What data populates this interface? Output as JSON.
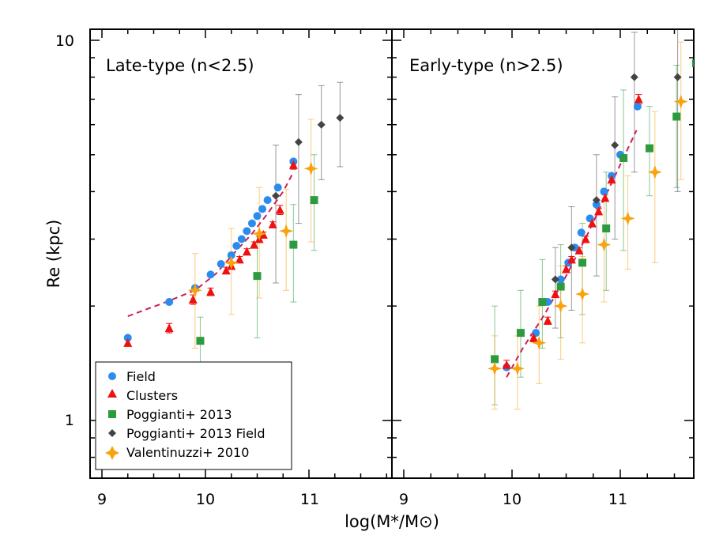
{
  "chart_data": [
    {
      "type": "scatter",
      "title": "Late-type (n<2.5)",
      "xlabel": "log(M*/M⊙)",
      "ylabel": "Re (kpc)",
      "xlim": [
        8.9,
        11.8
      ],
      "ylim": [
        0.7,
        10
      ],
      "yscale": "log",
      "x_ticks": [
        "9",
        "10",
        "11"
      ],
      "y_ticks": [
        "1",
        "10"
      ],
      "series": [
        {
          "name": "Field",
          "color": "#2b8cf0",
          "marker": "circle",
          "x": [
            9.25,
            9.65,
            9.9,
            10.05,
            10.15,
            10.25,
            10.3,
            10.35,
            10.4,
            10.45,
            10.5,
            10.55,
            10.6,
            10.7,
            10.85
          ],
          "y": [
            1.65,
            2.05,
            2.23,
            2.42,
            2.58,
            2.72,
            2.88,
            3.0,
            3.15,
            3.3,
            3.45,
            3.6,
            3.8,
            4.1,
            4.8
          ]
        },
        {
          "name": "Clusters",
          "color": "#ee1111",
          "marker": "triangle",
          "x": [
            9.25,
            9.65,
            9.88,
            10.05,
            10.2,
            10.25,
            10.33,
            10.4,
            10.47,
            10.52,
            10.56,
            10.65,
            10.72,
            10.85
          ],
          "y": [
            1.6,
            1.75,
            2.08,
            2.18,
            2.48,
            2.55,
            2.65,
            2.78,
            2.9,
            3.0,
            3.08,
            3.28,
            3.58,
            4.7
          ],
          "err": [
            [
              0.03,
              0.03
            ],
            [
              0.05,
              0.05
            ],
            [
              0.06,
              0.06
            ],
            [
              0.05,
              0.05
            ],
            [
              0.05,
              0.05
            ],
            [
              0.05,
              0.05
            ],
            [
              0.05,
              0.05
            ],
            [
              0.05,
              0.05
            ],
            [
              0.05,
              0.05
            ],
            [
              0.05,
              0.05
            ],
            [
              0.05,
              0.05
            ],
            [
              0.05,
              0.05
            ],
            [
              0.1,
              0.1
            ],
            [
              0.12,
              0.12
            ]
          ]
        },
        {
          "name": "Poggianti+ 2013",
          "color": "#2e9a3e",
          "marker": "square",
          "x": [
            9.95,
            10.5,
            10.85,
            11.05
          ],
          "y": [
            1.62,
            2.4,
            2.9,
            3.8
          ],
          "err": [
            [
              0.3,
              0.25
            ],
            [
              0.75,
              0.7
            ],
            [
              0.85,
              0.8
            ],
            [
              1.0,
              1.2
            ]
          ]
        },
        {
          "name": "Poggianti+ 2013 Field",
          "color": "#444444",
          "marker": "diamond",
          "x": [
            10.68,
            10.9,
            11.12,
            11.3
          ],
          "y": [
            3.9,
            5.4,
            6.0,
            6.25
          ],
          "err": [
            [
              1.6,
              1.4
            ],
            [
              2.1,
              1.8
            ],
            [
              1.7,
              1.6
            ],
            [
              1.6,
              1.5
            ]
          ]
        },
        {
          "name": "Valentinuzzi+ 2010",
          "color": "#f8a30e",
          "marker": "star",
          "x": [
            9.9,
            10.25,
            10.52,
            10.78,
            11.02
          ],
          "y": [
            2.2,
            2.6,
            3.1,
            3.15,
            4.6
          ],
          "err": [
            [
              0.65,
              0.55
            ],
            [
              0.7,
              0.6
            ],
            [
              1.0,
              1.0
            ],
            [
              0.95,
              0.9
            ],
            [
              1.65,
              1.6
            ]
          ]
        }
      ],
      "fit_line": {
        "x": [
          9.25,
          9.6,
          9.9,
          10.1,
          10.3,
          10.45,
          10.6,
          10.75,
          10.85
        ],
        "y": [
          1.88,
          2.04,
          2.2,
          2.43,
          2.8,
          3.1,
          3.5,
          4.0,
          4.5
        ],
        "color": "#cc1f57",
        "style": "dashed"
      },
      "legend": [
        "Field",
        "Clusters",
        "Poggianti+ 2013",
        "Poggianti+ 2013 Field",
        "Valentinuzzi+ 2010"
      ],
      "legend_placement": "bottom-left"
    },
    {
      "type": "scatter",
      "title": "Early-type (n>2.5)",
      "xlabel": "log(M*/M⊙)",
      "ylabel": "Re (kpc)",
      "xlim": [
        8.9,
        11.8
      ],
      "ylim": [
        0.7,
        10
      ],
      "yscale": "log",
      "x_ticks": [
        "9",
        "10",
        "11"
      ],
      "y_ticks": [
        "1",
        "10"
      ],
      "series": [
        {
          "name": "Field",
          "color": "#2b8cf0",
          "marker": "circle",
          "x": [
            9.95,
            10.22,
            10.33,
            10.45,
            10.52,
            10.58,
            10.64,
            10.72,
            10.78,
            10.85,
            10.92,
            11.0,
            11.16
          ],
          "y": [
            1.38,
            1.7,
            2.05,
            2.35,
            2.6,
            2.85,
            3.12,
            3.4,
            3.7,
            4.0,
            4.4,
            5.0,
            6.7
          ]
        },
        {
          "name": "Clusters",
          "color": "#ee1111",
          "marker": "triangle",
          "x": [
            9.95,
            10.2,
            10.33,
            10.4,
            10.5,
            10.55,
            10.62,
            10.68,
            10.74,
            10.8,
            10.86,
            10.92,
            11.17
          ],
          "y": [
            1.4,
            1.65,
            1.83,
            2.15,
            2.5,
            2.65,
            2.8,
            3.0,
            3.3,
            3.55,
            3.85,
            4.3,
            7.0
          ],
          "err": [
            [
              0.04,
              0.04
            ],
            [
              0.04,
              0.04
            ],
            [
              0.04,
              0.04
            ],
            [
              0.04,
              0.04
            ],
            [
              0.05,
              0.05
            ],
            [
              0.05,
              0.05
            ],
            [
              0.05,
              0.05
            ],
            [
              0.05,
              0.05
            ],
            [
              0.06,
              0.06
            ],
            [
              0.06,
              0.06
            ],
            [
              0.07,
              0.07
            ],
            [
              0.08,
              0.08
            ],
            [
              0.2,
              0.2
            ]
          ]
        },
        {
          "name": "Poggianti+ 2013",
          "color": "#2e9a3e",
          "marker": "square",
          "x": [
            9.84,
            10.08,
            10.28,
            10.45,
            10.65,
            10.87,
            11.03,
            11.27,
            11.52,
            11.7
          ],
          "y": [
            1.45,
            1.7,
            2.05,
            2.25,
            2.6,
            3.2,
            4.9,
            5.2,
            6.3,
            8.7
          ],
          "err": [
            [
              0.35,
              0.55
            ],
            [
              0.4,
              0.5
            ],
            [
              0.5,
              0.6
            ],
            [
              0.6,
              0.65
            ],
            [
              0.7,
              0.7
            ],
            [
              1.0,
              1.3
            ],
            [
              2.1,
              2.5
            ],
            [
              1.3,
              1.5
            ],
            [
              2.2,
              2.3
            ],
            [
              2.6,
              2.8
            ]
          ]
        },
        {
          "name": "Poggianti+ 2013 Field",
          "color": "#444444",
          "marker": "diamond",
          "x": [
            10.4,
            10.55,
            10.78,
            10.95,
            11.13,
            11.53
          ],
          "y": [
            2.35,
            2.85,
            3.8,
            5.3,
            8.0,
            8.0
          ],
          "err": [
            [
              0.6,
              0.5
            ],
            [
              0.9,
              0.8
            ],
            [
              1.4,
              1.2
            ],
            [
              2.3,
              1.8
            ],
            [
              3.5,
              2.5
            ],
            [
              4.0,
              3.0
            ]
          ]
        },
        {
          "name": "Valentinuzzi+ 2010",
          "color": "#f8a30e",
          "marker": "star",
          "x": [
            9.84,
            10.05,
            10.25,
            10.45,
            10.65,
            10.85,
            11.07,
            11.32,
            11.56
          ],
          "y": [
            1.37,
            1.37,
            1.6,
            2.0,
            2.15,
            2.9,
            3.4,
            4.5,
            6.9
          ],
          "err": [
            [
              0.3,
              0.3
            ],
            [
              0.3,
              0.3
            ],
            [
              0.35,
              0.4
            ],
            [
              0.55,
              0.55
            ],
            [
              0.55,
              0.55
            ],
            [
              0.85,
              0.95
            ],
            [
              0.9,
              1.0
            ],
            [
              1.9,
              2.0
            ],
            [
              2.6,
              3.0
            ]
          ]
        }
      ],
      "fit_line": {
        "x": [
          9.95,
          10.1,
          10.3,
          10.5,
          10.7,
          10.9,
          11.15
        ],
        "y": [
          1.3,
          1.55,
          1.9,
          2.4,
          3.1,
          4.1,
          5.8
        ],
        "color": "#cc1f57",
        "style": "dashed"
      }
    }
  ]
}
